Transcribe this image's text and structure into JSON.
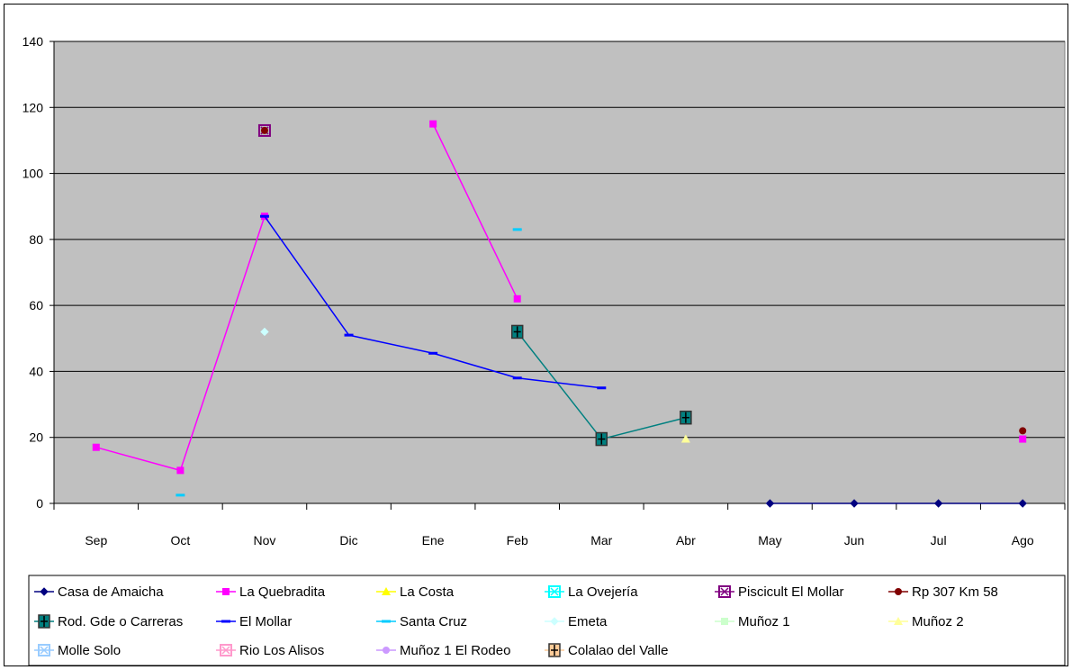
{
  "chart_data": {
    "type": "line",
    "categories": [
      "Sep",
      "Oct",
      "Nov",
      "Dic",
      "Ene",
      "Feb",
      "Mar",
      "Abr",
      "May",
      "Jun",
      "Jul",
      "Ago"
    ],
    "ylim": [
      0,
      140
    ],
    "yticks": [
      0,
      20,
      40,
      60,
      80,
      100,
      120,
      140
    ],
    "grid": true,
    "legend_position": "bottom",
    "plot_background": "#c0c0c0",
    "series": [
      {
        "name": "Casa de Amaicha",
        "color": "#000080",
        "marker": "diamond",
        "values": [
          null,
          null,
          null,
          null,
          null,
          null,
          null,
          null,
          0,
          0,
          0,
          0
        ]
      },
      {
        "name": "La Quebradita",
        "color": "#ff00ff",
        "marker": "square",
        "values": [
          17,
          10,
          87,
          null,
          115,
          62,
          null,
          null,
          null,
          null,
          null,
          19.5
        ]
      },
      {
        "name": "La Costa",
        "color": "#ffff00",
        "marker": "triangle",
        "values": [
          null,
          null,
          null,
          null,
          null,
          null,
          null,
          null,
          null,
          null,
          null,
          null
        ]
      },
      {
        "name": "La Ovejería",
        "color": "#00ffff",
        "marker": "xbox",
        "values": [
          null,
          null,
          null,
          null,
          null,
          null,
          null,
          null,
          null,
          null,
          null,
          null
        ]
      },
      {
        "name": "Piscicult El Mollar",
        "color": "#800080",
        "marker": "xbox",
        "values": [
          null,
          null,
          113,
          null,
          null,
          null,
          null,
          null,
          null,
          null,
          null,
          null
        ]
      },
      {
        "name": "Rp 307 Km 58",
        "color": "#800000",
        "marker": "circle",
        "values": [
          null,
          null,
          113,
          null,
          null,
          null,
          null,
          null,
          null,
          null,
          null,
          22
        ]
      },
      {
        "name": "Rod. Gde o Carreras",
        "color": "#008080",
        "marker": "plusbox",
        "values": [
          null,
          null,
          null,
          null,
          null,
          52,
          19.5,
          26,
          null,
          null,
          null,
          null
        ]
      },
      {
        "name": "El Mollar",
        "color": "#0000ff",
        "marker": "dash",
        "values": [
          null,
          null,
          87,
          51,
          45.5,
          38,
          35,
          null,
          null,
          null,
          null,
          null
        ]
      },
      {
        "name": "Santa Cruz",
        "color": "#00ccff",
        "marker": "dash",
        "values": [
          null,
          2.5,
          null,
          null,
          null,
          83,
          null,
          null,
          null,
          null,
          null,
          null
        ]
      },
      {
        "name": "Emeta",
        "color": "#ccffff",
        "marker": "diamond",
        "values": [
          null,
          null,
          52,
          null,
          null,
          null,
          null,
          null,
          null,
          null,
          null,
          null
        ]
      },
      {
        "name": "Muñoz 1",
        "color": "#ccffcc",
        "marker": "square",
        "values": [
          null,
          null,
          null,
          null,
          null,
          null,
          null,
          null,
          null,
          null,
          null,
          null
        ]
      },
      {
        "name": "Muñoz 2",
        "color": "#ffff99",
        "marker": "triangle",
        "values": [
          null,
          null,
          null,
          null,
          null,
          null,
          null,
          19.5,
          null,
          null,
          null,
          null
        ]
      },
      {
        "name": "Molle Solo",
        "color": "#99ccff",
        "marker": "xbox",
        "values": [
          null,
          null,
          null,
          null,
          null,
          null,
          null,
          null,
          null,
          null,
          null,
          null
        ]
      },
      {
        "name": "Rio Los Alisos",
        "color": "#ff99cc",
        "marker": "xbox",
        "values": [
          null,
          null,
          null,
          null,
          null,
          null,
          null,
          null,
          null,
          null,
          null,
          null
        ]
      },
      {
        "name": "Muñoz 1 El Rodeo",
        "color": "#cc99ff",
        "marker": "circle",
        "values": [
          null,
          null,
          null,
          null,
          null,
          null,
          null,
          null,
          null,
          null,
          null,
          null
        ]
      },
      {
        "name": "Colalao del Valle",
        "color": "#ffcc99",
        "marker": "plusbox",
        "values": [
          null,
          null,
          null,
          null,
          null,
          null,
          null,
          null,
          null,
          null,
          null,
          null
        ]
      }
    ]
  }
}
